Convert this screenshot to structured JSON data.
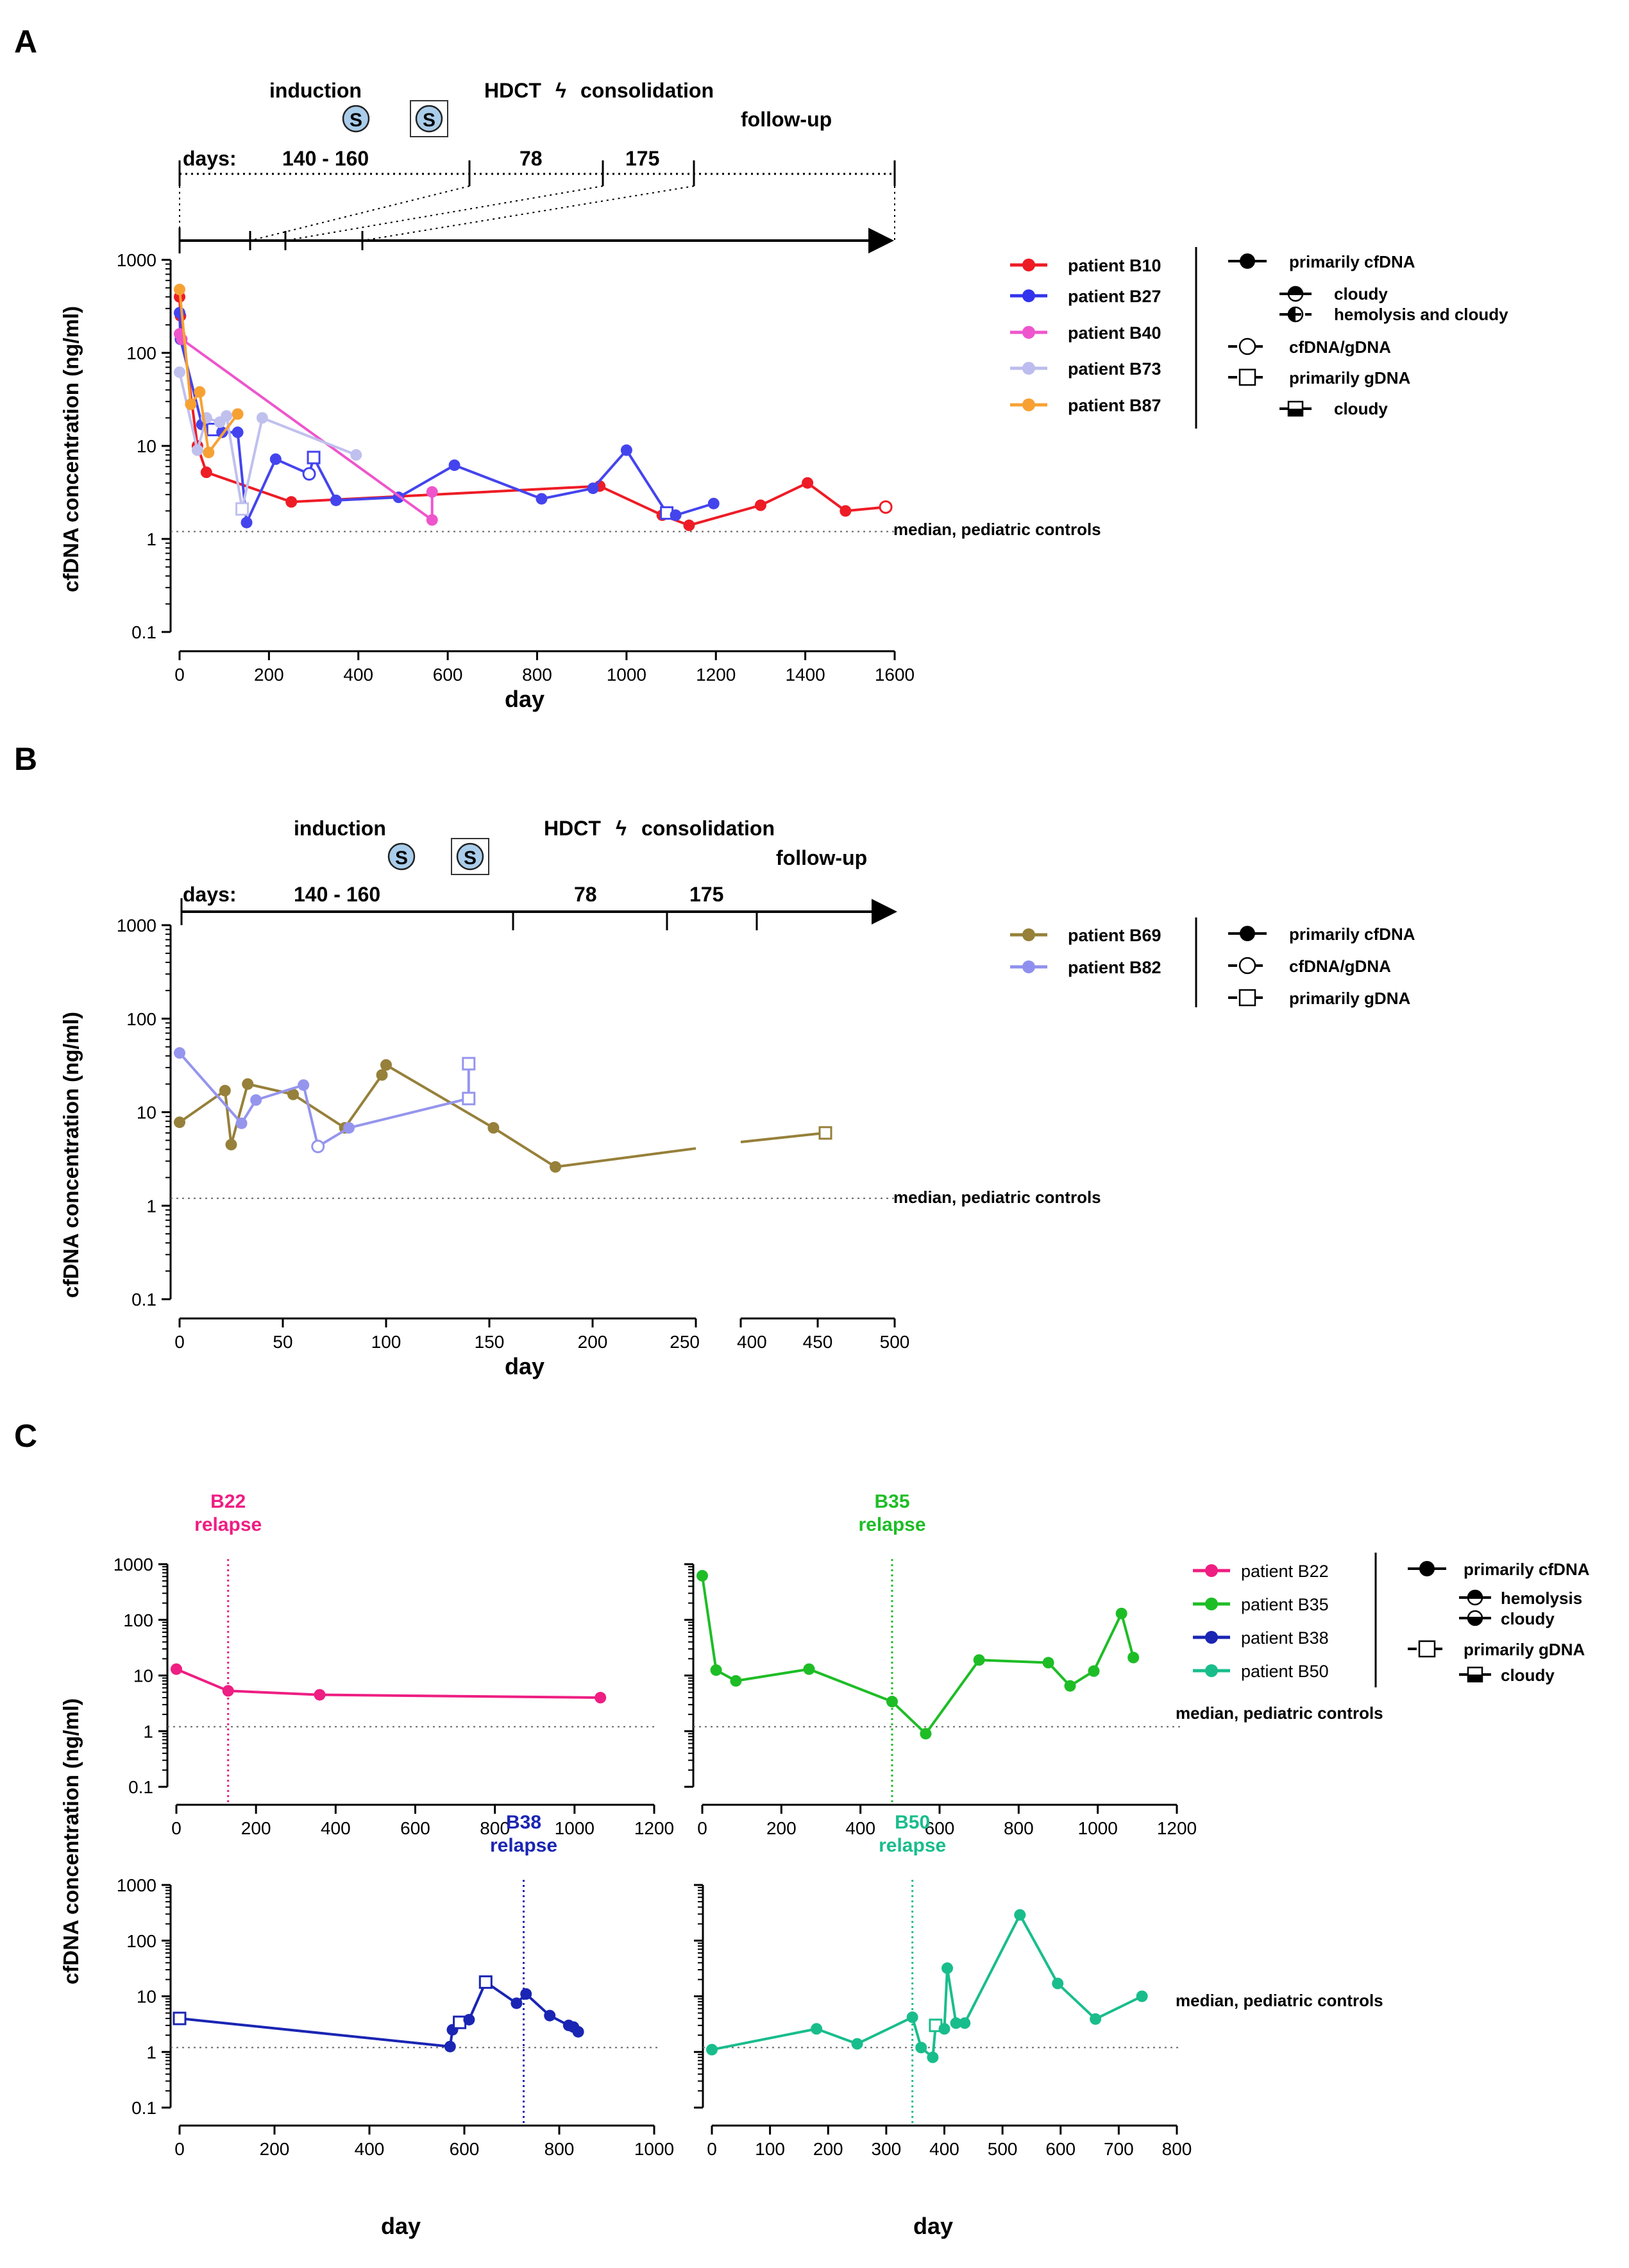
{
  "panels": [
    {
      "label": "A",
      "timeline": {
        "phases": [
          "induction",
          "HDCT",
          "consolidation",
          "follow-up"
        ],
        "phase_separator": "ϟ",
        "days_label": "days:",
        "durations": [
          "140 - 160",
          "78",
          "175"
        ],
        "s_symbol": "S"
      },
      "legend_series": [
        {
          "label": "patient B10",
          "color": "#ee1c25"
        },
        {
          "label": "patient B27",
          "color": "#3333ee"
        },
        {
          "label": "patient B40",
          "color": "#ee55cc"
        },
        {
          "label": "patient B73",
          "color": "#bcbcee"
        },
        {
          "label": "patient B87",
          "color": "#f7a133"
        }
      ],
      "legend_symbols": [
        {
          "label": "primarily cfDNA",
          "glyph": "filled-circle"
        },
        {
          "label": "cloudy",
          "glyph": "circle-top-filled"
        },
        {
          "label": "hemolysis and cloudy",
          "glyph": "circle-left-filled"
        },
        {
          "label": "cfDNA/gDNA",
          "glyph": "open-circle"
        },
        {
          "label": "primarily gDNA",
          "glyph": "open-square"
        },
        {
          "label": "cloudy",
          "glyph": "square-bottom-filled"
        }
      ]
    },
    {
      "label": "B",
      "timeline": {
        "phases": [
          "induction",
          "HDCT",
          "consolidation",
          "follow-up"
        ],
        "phase_separator": "ϟ",
        "days_label": "days:",
        "durations": [
          "140 - 160",
          "78",
          "175"
        ],
        "s_symbol": "S"
      },
      "legend_series": [
        {
          "label": "patient B69",
          "color": "#96803a"
        },
        {
          "label": "patient B82",
          "color": "#8f90ee"
        }
      ],
      "legend_symbols": [
        {
          "label": "primarily cfDNA",
          "glyph": "filled-circle"
        },
        {
          "label": "cfDNA/gDNA",
          "glyph": "open-circle"
        },
        {
          "label": "primarily gDNA",
          "glyph": "open-square"
        }
      ]
    },
    {
      "label": "C",
      "legend_series": [
        {
          "label": "patient B22",
          "color": "#ee1e82"
        },
        {
          "label": "patient B35",
          "color": "#1ebd26"
        },
        {
          "label": "patient B38",
          "color": "#1a25b3"
        },
        {
          "label": "patient B50",
          "color": "#19bd8c"
        }
      ],
      "legend_symbols": [
        {
          "label": "primarily cfDNA",
          "glyph": "filled-circle"
        },
        {
          "label": "hemolysis",
          "glyph": "circle-top-filled"
        },
        {
          "label": "cloudy",
          "glyph": "circle-bottom-filled"
        },
        {
          "label": "primarily gDNA",
          "glyph": "open-square"
        },
        {
          "label": "cloudy",
          "glyph": "square-bottom-filled"
        }
      ]
    }
  ],
  "common": {
    "ylabel": "cfDNA concentration (ng/ml)",
    "xlabel": "day",
    "ref_line_label": "median, pediatric controls",
    "ref_line_value": 1.2,
    "relapse_word": "relapse"
  },
  "chart_data": [
    {
      "id": "A",
      "type": "line",
      "xlabel": "day",
      "ylabel": "cfDNA concentration (ng/ml)",
      "yscale": "log",
      "xlim": [
        0,
        1600
      ],
      "ylim": [
        0.1,
        1000
      ],
      "xticks": [
        0,
        200,
        400,
        600,
        800,
        1000,
        1200,
        1400,
        1600
      ],
      "yticks": [
        0.1,
        1,
        10,
        100,
        1000
      ],
      "ytick_labels": [
        "0.1",
        "1",
        "10",
        "100",
        "1000"
      ],
      "ref_line": 1.2,
      "series": [
        {
          "name": "patient B10",
          "color": "#ee1c25",
          "points": [
            [
              0,
              400,
              "f"
            ],
            [
              2,
              250,
              "f"
            ],
            [
              40,
              10,
              "f"
            ],
            [
              60,
              5.2,
              "f"
            ],
            [
              250,
              2.5,
              "f"
            ],
            [
              940,
              3.7,
              "f"
            ],
            [
              1080,
              1.8,
              "f"
            ],
            [
              1140,
              1.4,
              "f"
            ],
            [
              1300,
              2.3,
              "f"
            ],
            [
              1405,
              4,
              "f"
            ],
            [
              1490,
              2,
              "f"
            ],
            [
              1580,
              2.2,
              "o"
            ]
          ]
        },
        {
          "name": "patient B27",
          "color": "#4444ee",
          "points": [
            [
              0,
              270,
              "f"
            ],
            [
              2,
              140,
              "f"
            ],
            [
              50,
              17,
              "f"
            ],
            [
              75,
              15,
              "s"
            ],
            [
              95,
              14,
              "f"
            ],
            [
              130,
              14,
              "f"
            ],
            [
              150,
              1.5,
              "f"
            ],
            [
              215,
              7.2,
              "f"
            ],
            [
              290,
              5,
              "o"
            ],
            [
              300,
              7.5,
              "s"
            ],
            [
              350,
              2.6,
              "f"
            ],
            [
              490,
              2.8,
              "f"
            ],
            [
              615,
              6.2,
              "f"
            ],
            [
              810,
              2.7,
              "f"
            ],
            [
              925,
              3.5,
              "f"
            ],
            [
              1000,
              9,
              "f"
            ],
            [
              1090,
              1.9,
              "s"
            ],
            [
              1110,
              1.8,
              "f"
            ],
            [
              1195,
              2.4,
              "f"
            ]
          ]
        },
        {
          "name": "patient B40",
          "color": "#ee55cc",
          "points": [
            [
              0,
              160,
              "f"
            ],
            [
              5,
              140,
              "f"
            ],
            [
              565,
              1.6,
              "f"
            ],
            [
              565,
              3.2,
              "f"
            ]
          ]
        },
        {
          "name": "patient B73",
          "color": "#c0c0ee",
          "points": [
            [
              0,
              62,
              "f"
            ],
            [
              40,
              9,
              "f"
            ],
            [
              60,
              20,
              "f"
            ],
            [
              90,
              18,
              "f"
            ],
            [
              105,
              21,
              "f"
            ],
            [
              140,
              2.1,
              "s"
            ],
            [
              185,
              20,
              "f"
            ],
            [
              395,
              8,
              "f"
            ]
          ]
        },
        {
          "name": "patient B87",
          "color": "#f7a133",
          "points": [
            [
              0,
              480,
              "f"
            ],
            [
              25,
              28,
              "f"
            ],
            [
              45,
              38,
              "f"
            ],
            [
              65,
              8.5,
              "f"
            ],
            [
              130,
              22,
              "f"
            ]
          ]
        }
      ]
    },
    {
      "id": "B",
      "type": "line",
      "xlabel": "day",
      "ylabel": "cfDNA concentration (ng/ml)",
      "yscale": "log",
      "xlim": [
        0,
        500
      ],
      "x_axis_break": [
        250,
        400
      ],
      "ylim": [
        0.1,
        1000
      ],
      "xticks": [
        0,
        50,
        100,
        150,
        200,
        250,
        400,
        450,
        500
      ],
      "yticks": [
        0.1,
        1,
        10,
        100,
        1000
      ],
      "ytick_labels": [
        "0.1",
        "1",
        "10",
        "100",
        "1000"
      ],
      "ref_line": 1.2,
      "series": [
        {
          "name": "patient B69",
          "color": "#96803a",
          "points": [
            [
              0,
              7.8,
              "f"
            ],
            [
              22,
              17,
              "f"
            ],
            [
              25,
              4.5,
              "f"
            ],
            [
              33,
              20,
              "f"
            ],
            [
              55,
              15.5,
              "f"
            ],
            [
              80,
              6.8,
              "f"
            ],
            [
              98,
              25,
              "f"
            ],
            [
              100,
              32,
              "f"
            ],
            [
              152,
              6.8,
              "f"
            ],
            [
              182,
              2.6,
              "f"
            ],
            [
              250,
              4.1,
              "x"
            ],
            [
              400,
              4.8,
              "x"
            ],
            [
              455,
              6,
              "s"
            ]
          ]
        },
        {
          "name": "patient B82",
          "color": "#9595ee",
          "points": [
            [
              0,
              43,
              "f"
            ],
            [
              30,
              7.6,
              "f"
            ],
            [
              37,
              13.5,
              "f"
            ],
            [
              60,
              19.5,
              "f"
            ],
            [
              67,
              4.3,
              "o"
            ],
            [
              82,
              6.8,
              "f"
            ],
            [
              140,
              14,
              "s"
            ],
            [
              140,
              33,
              "s"
            ]
          ]
        }
      ]
    },
    {
      "id": "C-B22",
      "type": "line",
      "title": "B22",
      "xlabel": "",
      "yscale": "log",
      "xlim": [
        0,
        1200
      ],
      "ylim": [
        0.1,
        1000
      ],
      "xticks": [
        0,
        200,
        400,
        600,
        800,
        1000,
        1200
      ],
      "yticks": [
        0.1,
        1,
        10,
        100,
        1000
      ],
      "ytick_labels": [
        "0.1",
        "1",
        "10",
        "100",
        "1000"
      ],
      "ref_line": 1.2,
      "relapse_day": 130,
      "series": [
        {
          "name": "patient B22",
          "color": "#ee1e82",
          "points": [
            [
              0,
              13,
              "f"
            ],
            [
              130,
              5.3,
              "f"
            ],
            [
              360,
              4.5,
              "f"
            ],
            [
              1065,
              4,
              "f"
            ]
          ]
        }
      ]
    },
    {
      "id": "C-B35",
      "type": "line",
      "title": "B35",
      "xlabel": "",
      "yscale": "log",
      "xlim": [
        0,
        1200
      ],
      "ylim": [
        0.1,
        1000
      ],
      "xticks": [
        0,
        200,
        400,
        600,
        800,
        1000,
        1200
      ],
      "yticks": [
        0.1,
        1,
        10,
        100,
        1000
      ],
      "ytick_labels": [],
      "ref_line": 1.2,
      "relapse_day": 480,
      "series": [
        {
          "name": "patient B35",
          "color": "#1ebd26",
          "points": [
            [
              0,
              620,
              "f"
            ],
            [
              35,
              12.5,
              "f"
            ],
            [
              85,
              8,
              "f"
            ],
            [
              270,
              13,
              "f"
            ],
            [
              480,
              3.4,
              "f"
            ],
            [
              565,
              0.9,
              "f"
            ],
            [
              700,
              19,
              "f"
            ],
            [
              875,
              17,
              "f"
            ],
            [
              930,
              6.5,
              "f"
            ],
            [
              990,
              12,
              "f"
            ],
            [
              1060,
              130,
              "f"
            ],
            [
              1090,
              21,
              "f"
            ]
          ]
        }
      ]
    },
    {
      "id": "C-B38",
      "type": "line",
      "title": "B38",
      "xlabel": "day",
      "yscale": "log",
      "xlim": [
        0,
        1000
      ],
      "ylim": [
        0.1,
        1000
      ],
      "xticks": [
        0,
        200,
        400,
        600,
        800,
        1000
      ],
      "yticks": [
        0.1,
        1,
        10,
        100,
        1000
      ],
      "ytick_labels": [
        "0.1",
        "1",
        "10",
        "100",
        "1000"
      ],
      "ref_line": 1.2,
      "relapse_day": 725,
      "series": [
        {
          "name": "patient B38",
          "color": "#1a25b3",
          "points": [
            [
              0,
              4,
              "s"
            ],
            [
              570,
              1.25,
              "f"
            ],
            [
              575,
              2.5,
              "f"
            ],
            [
              590,
              3.4,
              "s"
            ],
            [
              610,
              3.8,
              "f"
            ],
            [
              645,
              18,
              "s"
            ],
            [
              710,
              7.5,
              "f"
            ],
            [
              730,
              11,
              "f"
            ],
            [
              780,
              4.5,
              "f"
            ],
            [
              820,
              3,
              "f"
            ],
            [
              830,
              2.8,
              "f"
            ],
            [
              840,
              2.3,
              "f"
            ]
          ]
        }
      ]
    },
    {
      "id": "C-B50",
      "type": "line",
      "title": "B50",
      "xlabel": "day",
      "yscale": "log",
      "xlim": [
        0,
        800
      ],
      "ylim": [
        0.1,
        1000
      ],
      "xticks": [
        0,
        100,
        200,
        300,
        400,
        500,
        600,
        700,
        800
      ],
      "yticks": [
        0.1,
        1,
        10,
        100,
        1000
      ],
      "ytick_labels": [],
      "ref_line": 1.2,
      "relapse_day": 345,
      "series": [
        {
          "name": "patient B50",
          "color": "#19bd8c",
          "points": [
            [
              0,
              1.1,
              "f"
            ],
            [
              180,
              2.6,
              "f"
            ],
            [
              250,
              1.4,
              "f"
            ],
            [
              345,
              4.2,
              "f"
            ],
            [
              360,
              1.2,
              "f"
            ],
            [
              380,
              0.8,
              "f"
            ],
            [
              385,
              3,
              "s"
            ],
            [
              400,
              2.6,
              "f"
            ],
            [
              405,
              32,
              "f"
            ],
            [
              420,
              3.3,
              "f"
            ],
            [
              435,
              3.3,
              "f"
            ],
            [
              530,
              290,
              "f"
            ],
            [
              595,
              17,
              "f"
            ],
            [
              660,
              3.9,
              "f"
            ],
            [
              740,
              10,
              "f"
            ]
          ]
        }
      ]
    }
  ]
}
